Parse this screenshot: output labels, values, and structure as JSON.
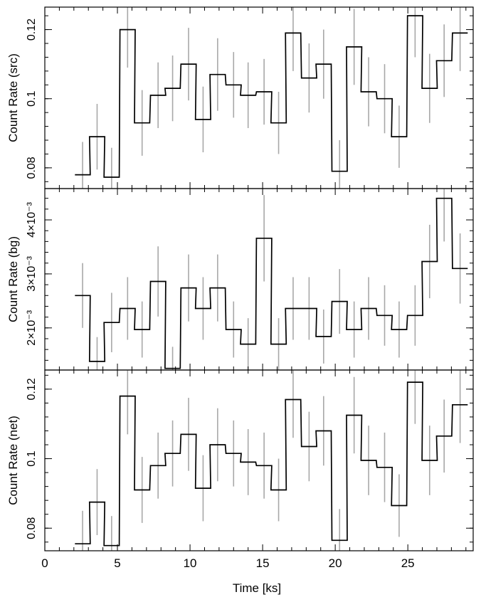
{
  "chart_data": [
    {
      "type": "line",
      "step": true,
      "ylabel": "Count Rate (src)",
      "xlim": [
        0,
        29.5
      ],
      "ylim": [
        0.074,
        0.1265
      ],
      "y_ticks": [
        0.08,
        0.1,
        0.12
      ],
      "y_tick_labels": [
        "0.08",
        "0.1",
        "0.12"
      ],
      "bin_width": 1.05,
      "x": [
        2.6,
        3.6,
        4.6,
        5.7,
        6.7,
        7.8,
        8.8,
        9.9,
        10.9,
        11.9,
        13.0,
        14.0,
        15.1,
        16.1,
        17.1,
        18.2,
        19.2,
        20.3,
        21.3,
        22.3,
        23.4,
        24.4,
        25.5,
        26.5,
        27.5,
        28.6
      ],
      "values": [
        0.078,
        0.089,
        0.0773,
        0.12,
        0.093,
        0.101,
        0.103,
        0.11,
        0.094,
        0.107,
        0.104,
        0.101,
        0.102,
        0.093,
        0.119,
        0.106,
        0.11,
        0.079,
        0.115,
        0.102,
        0.1,
        0.089,
        0.124,
        0.103,
        0.111,
        0.119
      ],
      "errors": [
        0.0095,
        0.0095,
        0.0085,
        0.011,
        0.0095,
        0.0095,
        0.0095,
        0.0105,
        0.0095,
        0.0105,
        0.0095,
        0.0095,
        0.0095,
        0.009,
        0.011,
        0.01,
        0.01,
        0.009,
        0.011,
        0.01,
        0.01,
        0.009,
        0.012,
        0.01,
        0.0105,
        0.011
      ]
    },
    {
      "type": "line",
      "step": true,
      "ylabel": "Count Rate (bg)",
      "xlim": [
        0,
        29.5
      ],
      "ylim": [
        0.00122,
        0.00458
      ],
      "y_ticks": [
        0.002,
        0.003,
        0.004
      ],
      "y_tick_labels": [
        "2×10⁻³",
        "3×10⁻³",
        "4×10⁻³"
      ],
      "bin_width": 1.05,
      "x": [
        2.6,
        3.6,
        4.6,
        5.7,
        6.7,
        7.8,
        8.8,
        9.9,
        10.9,
        11.9,
        13.0,
        14.0,
        15.1,
        16.1,
        17.1,
        18.2,
        19.2,
        20.3,
        21.3,
        22.3,
        23.4,
        24.4,
        25.5,
        26.5,
        27.5,
        28.6
      ],
      "values": [
        0.0026,
        0.00138,
        0.0021,
        0.00236,
        0.00197,
        0.00286,
        0.00125,
        0.00274,
        0.00236,
        0.00274,
        0.00197,
        0.0017,
        0.00366,
        0.0017,
        0.00236,
        0.00236,
        0.00184,
        0.00249,
        0.00197,
        0.00236,
        0.00223,
        0.00197,
        0.00223,
        0.00323,
        0.0044,
        0.0031
      ],
      "errors": [
        0.0006,
        0.00045,
        0.00055,
        0.00058,
        0.00052,
        0.00065,
        0.0004,
        0.00062,
        0.00058,
        0.00062,
        0.00052,
        0.00048,
        0.0008,
        0.00048,
        0.00058,
        0.00058,
        0.0005,
        0.0006,
        0.00052,
        0.00058,
        0.00056,
        0.00052,
        0.00056,
        0.00068,
        0.0008,
        0.00065
      ]
    },
    {
      "type": "line",
      "step": true,
      "ylabel": "Count Rate (net)",
      "xlabel": "Time [ks]",
      "xlim": [
        0,
        29.5
      ],
      "ylim": [
        0.0735,
        0.1255
      ],
      "y_ticks": [
        0.08,
        0.1,
        0.12
      ],
      "y_tick_labels": [
        "0.08",
        "0.1",
        "0.12"
      ],
      "x_ticks": [
        0,
        5,
        10,
        15,
        20,
        25
      ],
      "x_tick_labels": [
        "0",
        "5",
        "10",
        "15",
        "20",
        "25"
      ],
      "bin_width": 1.05,
      "x": [
        2.6,
        3.6,
        4.6,
        5.7,
        6.7,
        7.8,
        8.8,
        9.9,
        10.9,
        11.9,
        13.0,
        14.0,
        15.1,
        16.1,
        17.1,
        18.2,
        19.2,
        20.3,
        21.3,
        22.3,
        23.4,
        24.4,
        25.5,
        26.5,
        27.5,
        28.6
      ],
      "values": [
        0.0755,
        0.0875,
        0.075,
        0.118,
        0.091,
        0.098,
        0.1015,
        0.107,
        0.0915,
        0.104,
        0.1015,
        0.099,
        0.098,
        0.091,
        0.117,
        0.1035,
        0.108,
        0.0765,
        0.1125,
        0.0995,
        0.0975,
        0.0865,
        0.122,
        0.0995,
        0.1065,
        0.1155
      ],
      "errors": [
        0.0095,
        0.0095,
        0.0085,
        0.011,
        0.0095,
        0.0095,
        0.0095,
        0.0105,
        0.0095,
        0.0105,
        0.0095,
        0.0095,
        0.0095,
        0.009,
        0.011,
        0.01,
        0.01,
        0.009,
        0.011,
        0.01,
        0.01,
        0.009,
        0.012,
        0.01,
        0.0105,
        0.011
      ]
    }
  ]
}
